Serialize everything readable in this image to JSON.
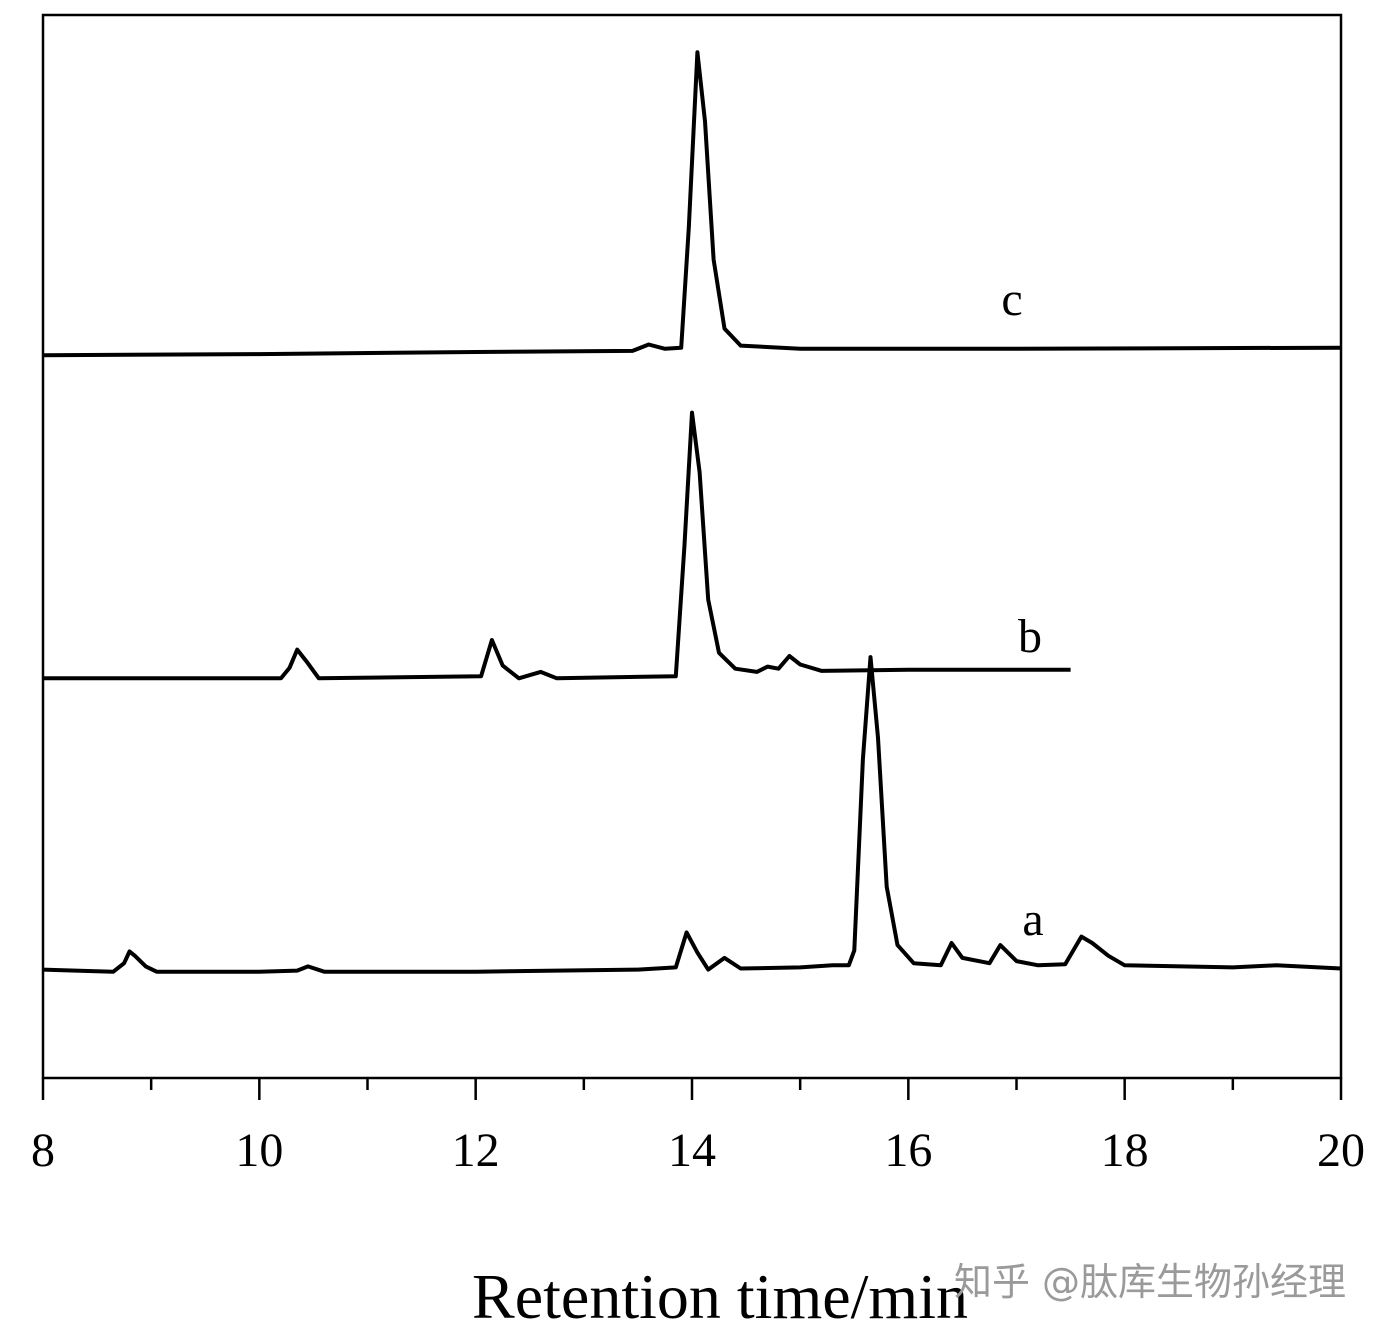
{
  "chart_data": {
    "type": "line",
    "xlabel": "Retention time/min",
    "watermark": "知乎 @肽库生物孙经理",
    "xlim": [
      8,
      20
    ],
    "xticks": [
      8,
      10,
      12,
      14,
      16,
      18,
      20
    ],
    "xminorticks": [
      9,
      11,
      13,
      15,
      17,
      19
    ],
    "ylim": [
      0,
      100
    ],
    "series": [
      {
        "name": "a",
        "color": "#000000",
        "x": [
          8.0,
          8.3,
          8.65,
          8.75,
          8.8,
          8.85,
          8.95,
          9.05,
          10.0,
          10.35,
          10.45,
          10.6,
          12.0,
          13.5,
          13.85,
          13.95,
          14.05,
          14.15,
          14.3,
          14.45,
          15.0,
          15.3,
          15.45,
          15.5,
          15.58,
          15.65,
          15.72,
          15.8,
          15.9,
          16.05,
          16.3,
          16.4,
          16.5,
          16.75,
          16.85,
          17.0,
          17.2,
          17.45,
          17.6,
          17.7,
          17.85,
          18.0,
          19.0,
          19.4,
          20.0
        ],
        "values": [
          10.2,
          10.1,
          10.0,
          10.8,
          11.9,
          11.5,
          10.5,
          10.0,
          10.0,
          10.1,
          10.5,
          10.0,
          10.0,
          10.2,
          10.4,
          13.7,
          11.8,
          10.2,
          11.3,
          10.3,
          10.4,
          10.6,
          10.6,
          12.0,
          30.0,
          39.6,
          32.0,
          18.0,
          12.5,
          10.8,
          10.6,
          12.7,
          11.3,
          10.8,
          12.5,
          11.0,
          10.6,
          10.7,
          13.3,
          12.7,
          11.5,
          10.6,
          10.4,
          10.6,
          10.3
        ]
      },
      {
        "name": "b",
        "color": "#000000",
        "x": [
          8.0,
          10.2,
          10.28,
          10.35,
          10.45,
          10.55,
          12.05,
          12.15,
          12.25,
          12.4,
          12.6,
          12.75,
          13.85,
          13.93,
          14.0,
          14.07,
          14.15,
          14.25,
          14.4,
          14.6,
          14.7,
          14.8,
          14.9,
          15.0,
          15.2,
          16.0,
          17.5
        ],
        "values": [
          37.6,
          37.6,
          38.6,
          40.3,
          39.0,
          37.6,
          37.8,
          41.2,
          38.8,
          37.6,
          38.2,
          37.6,
          37.8,
          50.0,
          62.6,
          57.0,
          45.0,
          40.0,
          38.5,
          38.2,
          38.7,
          38.5,
          39.7,
          38.9,
          38.3,
          38.4,
          38.4
        ]
      },
      {
        "name": "c",
        "color": "#000000",
        "x": [
          8.0,
          10.0,
          12.0,
          13.45,
          13.6,
          13.75,
          13.9,
          13.97,
          14.05,
          14.12,
          14.2,
          14.3,
          14.45,
          15.0,
          17.0,
          20.0
        ],
        "values": [
          68.0,
          68.1,
          68.3,
          68.4,
          69.0,
          68.6,
          68.7,
          80.0,
          96.5,
          90.0,
          77.0,
          70.5,
          68.9,
          68.6,
          68.6,
          68.7
        ]
      }
    ]
  }
}
